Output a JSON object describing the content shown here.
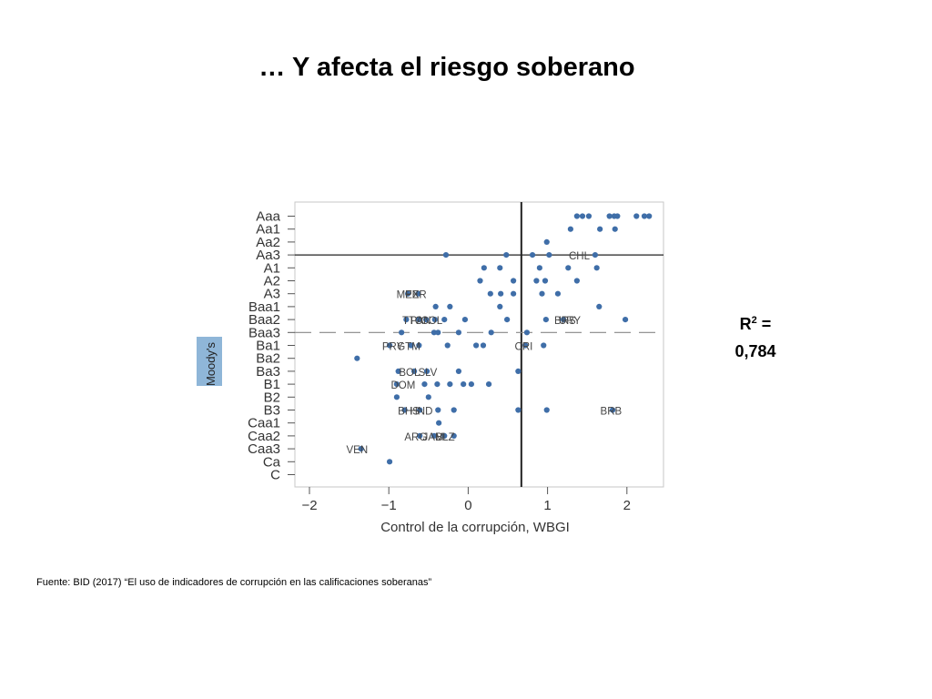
{
  "slide": {
    "title": "… Y afecta el riesgo soberano",
    "r2_label": "R",
    "r2_sup": "2",
    "r2_eq": " =",
    "r2_value": "0,784",
    "source": "Fuente: BID (2017) “El uso de indicadores de corrupción en las calificaciones soberanas”"
  },
  "chart_data": {
    "type": "scatter",
    "xlabel": "Control de la corrupción, WBGI",
    "ylabel": "Moody's",
    "xlim": [
      -2.15,
      2.4
    ],
    "xticks": [
      -2,
      -1,
      0,
      1,
      2
    ],
    "xtick_labels": [
      "−2",
      "−1",
      "0",
      "1",
      "2"
    ],
    "yticks": [
      "Aaa",
      "Aa1",
      "Aa2",
      "Aa3",
      "A1",
      "A2",
      "A3",
      "Baa1",
      "Baa2",
      "Baa3",
      "Ba1",
      "Ba2",
      "Ba3",
      "B1",
      "B2",
      "B3",
      "Caa1",
      "Caa2",
      "Caa3",
      "Ca",
      "C"
    ],
    "ref_vline_x": 0.67,
    "ref_hline_solid": "Aa3",
    "ref_hline_dashed": "Baa3",
    "dot_color": "#3f6ea8",
    "points": [
      {
        "x": 2.28,
        "y": "Aaa"
      },
      {
        "x": 2.22,
        "y": "Aaa"
      },
      {
        "x": 2.12,
        "y": "Aaa"
      },
      {
        "x": 1.88,
        "y": "Aaa"
      },
      {
        "x": 1.84,
        "y": "Aaa"
      },
      {
        "x": 1.78,
        "y": "Aaa"
      },
      {
        "x": 1.52,
        "y": "Aaa"
      },
      {
        "x": 1.44,
        "y": "Aaa"
      },
      {
        "x": 1.37,
        "y": "Aaa"
      },
      {
        "x": 1.85,
        "y": "Aa1"
      },
      {
        "x": 1.66,
        "y": "Aa1"
      },
      {
        "x": 1.29,
        "y": "Aa1"
      },
      {
        "x": 0.99,
        "y": "Aa2"
      },
      {
        "x": 1.6,
        "y": "Aa3"
      },
      {
        "x": 1.02,
        "y": "Aa3"
      },
      {
        "x": 0.81,
        "y": "Aa3"
      },
      {
        "x": 0.48,
        "y": "Aa3"
      },
      {
        "x": -0.28,
        "y": "Aa3"
      },
      {
        "x": 1.62,
        "y": "A1"
      },
      {
        "x": 1.26,
        "y": "A1"
      },
      {
        "x": 0.9,
        "y": "A1"
      },
      {
        "x": 0.4,
        "y": "A1"
      },
      {
        "x": 0.2,
        "y": "A1"
      },
      {
        "x": 1.37,
        "y": "A2"
      },
      {
        "x": 0.97,
        "y": "A2"
      },
      {
        "x": 0.86,
        "y": "A2"
      },
      {
        "x": 0.57,
        "y": "A2"
      },
      {
        "x": 0.15,
        "y": "A2"
      },
      {
        "x": 1.13,
        "y": "A3"
      },
      {
        "x": 0.93,
        "y": "A3"
      },
      {
        "x": 0.57,
        "y": "A3"
      },
      {
        "x": 0.41,
        "y": "A3"
      },
      {
        "x": 0.28,
        "y": "A3"
      },
      {
        "x": -0.63,
        "y": "A3"
      },
      {
        "x": -0.76,
        "y": "A3"
      },
      {
        "x": 1.65,
        "y": "Baa1"
      },
      {
        "x": 0.4,
        "y": "Baa1"
      },
      {
        "x": -0.23,
        "y": "Baa1"
      },
      {
        "x": -0.41,
        "y": "Baa1"
      },
      {
        "x": 1.98,
        "y": "Baa2"
      },
      {
        "x": 1.2,
        "y": "Baa2"
      },
      {
        "x": 0.98,
        "y": "Baa2"
      },
      {
        "x": 0.49,
        "y": "Baa2"
      },
      {
        "x": -0.04,
        "y": "Baa2"
      },
      {
        "x": -0.3,
        "y": "Baa2"
      },
      {
        "x": -0.42,
        "y": "Baa2"
      },
      {
        "x": -0.53,
        "y": "Baa2"
      },
      {
        "x": -0.62,
        "y": "Baa2"
      },
      {
        "x": -0.78,
        "y": "Baa2"
      },
      {
        "x": 0.74,
        "y": "Baa3"
      },
      {
        "x": 0.29,
        "y": "Baa3"
      },
      {
        "x": -0.12,
        "y": "Baa3"
      },
      {
        "x": -0.38,
        "y": "Baa3"
      },
      {
        "x": -0.43,
        "y": "Baa3"
      },
      {
        "x": -0.84,
        "y": "Baa3"
      },
      {
        "x": 0.95,
        "y": "Ba1"
      },
      {
        "x": 0.72,
        "y": "Ba1"
      },
      {
        "x": 0.19,
        "y": "Ba1"
      },
      {
        "x": 0.1,
        "y": "Ba1"
      },
      {
        "x": -0.26,
        "y": "Ba1"
      },
      {
        "x": -0.62,
        "y": "Ba1"
      },
      {
        "x": -0.72,
        "y": "Ba1"
      },
      {
        "x": -0.99,
        "y": "Ba1"
      },
      {
        "x": -1.4,
        "y": "Ba2"
      },
      {
        "x": 0.63,
        "y": "Ba3"
      },
      {
        "x": -0.12,
        "y": "Ba3"
      },
      {
        "x": -0.52,
        "y": "Ba3"
      },
      {
        "x": -0.68,
        "y": "Ba3"
      },
      {
        "x": -0.88,
        "y": "Ba3"
      },
      {
        "x": 0.26,
        "y": "B1"
      },
      {
        "x": 0.04,
        "y": "B1"
      },
      {
        "x": -0.06,
        "y": "B1"
      },
      {
        "x": -0.23,
        "y": "B1"
      },
      {
        "x": -0.39,
        "y": "B1"
      },
      {
        "x": -0.55,
        "y": "B1"
      },
      {
        "x": -0.9,
        "y": "B1"
      },
      {
        "x": -0.5,
        "y": "B2"
      },
      {
        "x": -0.9,
        "y": "B2"
      },
      {
        "x": 1.82,
        "y": "B3"
      },
      {
        "x": 0.99,
        "y": "B3"
      },
      {
        "x": 0.63,
        "y": "B3"
      },
      {
        "x": -0.18,
        "y": "B3"
      },
      {
        "x": -0.38,
        "y": "B3"
      },
      {
        "x": -0.61,
        "y": "B3"
      },
      {
        "x": -0.8,
        "y": "B3"
      },
      {
        "x": -0.37,
        "y": "Caa1"
      },
      {
        "x": -0.18,
        "y": "Caa2"
      },
      {
        "x": -0.3,
        "y": "Caa2"
      },
      {
        "x": -0.43,
        "y": "Caa2"
      },
      {
        "x": -0.61,
        "y": "Caa2"
      },
      {
        "x": -1.35,
        "y": "Caa3"
      },
      {
        "x": -0.99,
        "y": "Ca"
      }
    ],
    "labels": [
      {
        "text": "CHL",
        "x": 1.4,
        "y": "Aa3"
      },
      {
        "text": "MEX",
        "x": -0.76,
        "y": "A3"
      },
      {
        "text": "PER",
        "x": -0.66,
        "y": "A3"
      },
      {
        "text": "TTO",
        "x": -0.7,
        "y": "Baa2"
      },
      {
        "text": "PAN",
        "x": -0.6,
        "y": "Baa2"
      },
      {
        "text": "COL",
        "x": -0.46,
        "y": "Baa2"
      },
      {
        "text": "URY",
        "x": 1.28,
        "y": "Baa2"
      },
      {
        "text": "BRS",
        "x": 1.22,
        "y": "Baa2"
      },
      {
        "text": "PRY",
        "x": -0.95,
        "y": "Ba1"
      },
      {
        "text": "GTM",
        "x": -0.75,
        "y": "Ba1"
      },
      {
        "text": "CRI",
        "x": 0.7,
        "y": "Ba1"
      },
      {
        "text": "BOL",
        "x": -0.74,
        "y": "Ba3"
      },
      {
        "text": "SLV",
        "x": -0.51,
        "y": "Ba3"
      },
      {
        "text": "DOM",
        "x": -0.82,
        "y": "B1"
      },
      {
        "text": "BHS",
        "x": -0.75,
        "y": "B3"
      },
      {
        "text": "HND",
        "x": -0.59,
        "y": "B3"
      },
      {
        "text": "BRB",
        "x": 1.8,
        "y": "B3"
      },
      {
        "text": "ARG",
        "x": -0.66,
        "y": "Caa2"
      },
      {
        "text": "JAM",
        "x": -0.44,
        "y": "Caa2"
      },
      {
        "text": "BLZ",
        "x": -0.29,
        "y": "Caa2"
      },
      {
        "text": "VEN",
        "x": -1.4,
        "y": "Caa3"
      }
    ]
  }
}
